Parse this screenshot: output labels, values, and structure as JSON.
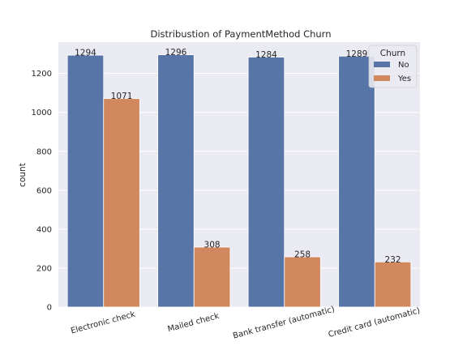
{
  "chart_data": {
    "type": "bar",
    "title": "Distribustion of PaymentMethod Churn",
    "xlabel": "",
    "ylabel": "count",
    "categories": [
      "Electronic check",
      "Mailed check",
      "Bank transfer (automatic)",
      "Credit card (automatic)"
    ],
    "series": [
      {
        "name": "No",
        "values": [
          1294,
          1296,
          1284,
          1289
        ],
        "color": "#5875a8"
      },
      {
        "name": "Yes",
        "values": [
          1071,
          308,
          258,
          232
        ],
        "color": "#d1885f"
      }
    ],
    "ylim": [
      0,
      1361
    ],
    "yticks": [
      0,
      200,
      400,
      600,
      800,
      1000,
      1200
    ],
    "grid": true,
    "legend": {
      "title": "Churn",
      "placement": "top-right"
    },
    "background": "#eaeaf2"
  }
}
